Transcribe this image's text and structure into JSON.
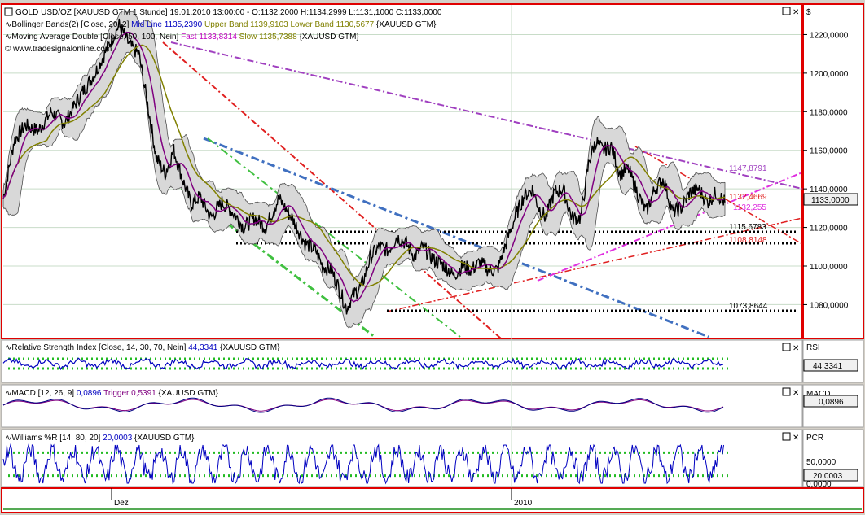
{
  "colors": {
    "panel_bg": "#ffffff",
    "frame_red": "#e00000",
    "candle": "#000000",
    "bollinger": "#808080",
    "mid_line": "#800080",
    "ma_fast": "#800080",
    "ma_slow": "#808000",
    "rsi": "#0000c0",
    "macd": "#000080",
    "williams": "#0000c0",
    "green_dots": "#22bb22",
    "purple_trend": "#a040c0",
    "red_trend": "#e02020",
    "blue_trend": "#4070c0",
    "green_trend": "#40c040",
    "magenta_trend": "#e030e0"
  },
  "header": {
    "instrument": "GOLD USD/OZ [XAUUSD GTM  1 Stunde] 19.01.2010 13:00:00 - O:1132,2000 H:1134,2999 L:1131,1000 C:1133,0000",
    "bb_prefix": "Bollinger Bands(2) [Close, 20, 2]",
    "bb_mid": "Mid Line 1135,2390",
    "bb_upper": "Upper Band 1139,9103",
    "bb_lower": "Lower Band 1130,5677",
    "bb_suffix": "{XAUUSD GTM}",
    "ma_prefix": "Moving Average Double [Close, 50, 100, Nein]",
    "ma_fast": "Fast 1133,8314",
    "ma_slow": "Slow 1135,7388",
    "ma_suffix": "{XAUUSD GTM}",
    "copyright": "© www.tradesignalonline.com"
  },
  "axis": {
    "currency": "$",
    "price_ticks": [
      "1220,0000",
      "1200,0000",
      "1180,0000",
      "1160,0000",
      "1140,0000",
      "1120,0000",
      "1100,0000",
      "1080,0000"
    ],
    "last_price": "1133,0000",
    "x_labels": [
      "Dez",
      "2010"
    ]
  },
  "annotations": {
    "a1147": "1147,8791",
    "a1132a": "1132,4669",
    "a1132b": "1132,255",
    "a1115": "1115,6783",
    "a1108": "1108,8148",
    "a1073": "1073,8644"
  },
  "rsi": {
    "title": "Relative Strength Index [Close, 14, 30, 70, Nein]",
    "value_text": "44,3341",
    "suffix": "{XAUUSD GTM}",
    "axis_label": "RSI",
    "box_value": "44,3341"
  },
  "macd": {
    "title": "MACD [12, 26, 9]",
    "value_text": "0,0896",
    "trigger_text": "Trigger 0,5391",
    "suffix": "{XAUUSD GTM}",
    "axis_label": "MACD",
    "box_value": "0,0896"
  },
  "williams": {
    "title": "Williams %R [14, 80, 20]",
    "value_text": "20,0003",
    "suffix": "{XAUUSD GTM}",
    "axis_label": "PCR",
    "ticks": [
      "50,0000",
      "0,0000"
    ],
    "box_value": "20,0003"
  },
  "chart_data": {
    "type": "line",
    "title": "GOLD USD/OZ [XAUUSD GTM  1 Stunde]",
    "x": [
      "Dez",
      "2010"
    ],
    "ylim": [
      1065,
      1232
    ],
    "grid": true,
    "price_path": [
      [
        0,
        1135
      ],
      [
        5,
        1165
      ],
      [
        10,
        1173
      ],
      [
        16,
        1170
      ],
      [
        22,
        1180
      ],
      [
        28,
        1174
      ],
      [
        35,
        1188
      ],
      [
        42,
        1200
      ],
      [
        48,
        1214
      ],
      [
        53,
        1225
      ],
      [
        58,
        1214
      ],
      [
        62,
        1210
      ],
      [
        66,
        1184
      ],
      [
        70,
        1156
      ],
      [
        74,
        1148
      ],
      [
        78,
        1160
      ],
      [
        82,
        1145
      ],
      [
        86,
        1132
      ],
      [
        90,
        1136
      ],
      [
        95,
        1125
      ],
      [
        100,
        1133
      ],
      [
        105,
        1128
      ],
      [
        110,
        1120
      ],
      [
        115,
        1125
      ],
      [
        120,
        1120
      ],
      [
        126,
        1135
      ],
      [
        132,
        1125
      ],
      [
        138,
        1112
      ],
      [
        143,
        1108
      ],
      [
        146,
        1100
      ],
      [
        150,
        1098
      ],
      [
        153,
        1090
      ],
      [
        157,
        1078
      ],
      [
        160,
        1085
      ],
      [
        164,
        1090
      ],
      [
        168,
        1105
      ],
      [
        172,
        1110
      ],
      [
        176,
        1108
      ],
      [
        180,
        1115
      ],
      [
        184,
        1112
      ],
      [
        188,
        1105
      ],
      [
        192,
        1110
      ],
      [
        197,
        1103
      ],
      [
        202,
        1100
      ],
      [
        206,
        1095
      ],
      [
        210,
        1100
      ],
      [
        214,
        1098
      ],
      [
        218,
        1102
      ],
      [
        222,
        1098
      ],
      [
        226,
        1098
      ],
      [
        230,
        1112
      ],
      [
        234,
        1125
      ],
      [
        238,
        1136
      ],
      [
        242,
        1140
      ],
      [
        245,
        1130
      ],
      [
        248,
        1125
      ],
      [
        252,
        1138
      ],
      [
        256,
        1140
      ],
      [
        260,
        1125
      ],
      [
        264,
        1125
      ],
      [
        268,
        1155
      ],
      [
        271,
        1165
      ],
      [
        274,
        1160
      ],
      [
        278,
        1162
      ],
      [
        282,
        1148
      ],
      [
        286,
        1150
      ],
      [
        290,
        1138
      ],
      [
        294,
        1128
      ],
      [
        298,
        1140
      ],
      [
        302,
        1145
      ],
      [
        306,
        1128
      ],
      [
        310,
        1130
      ],
      [
        314,
        1138
      ],
      [
        318,
        1140
      ],
      [
        322,
        1133
      ],
      [
        326,
        1138
      ],
      [
        330,
        1133
      ]
    ],
    "rsi": {
      "ylim": [
        0,
        100
      ],
      "levels": [
        30,
        70
      ],
      "last": 44.3341
    },
    "macd": {
      "last": 0.0896,
      "trigger": 0.5391
    },
    "williams": {
      "ylim": [
        0,
        100
      ],
      "levels": [
        20,
        80
      ],
      "last": 20.0003
    },
    "levels": [
      1115.6783,
      1108.8148,
      1073.8644
    ]
  }
}
